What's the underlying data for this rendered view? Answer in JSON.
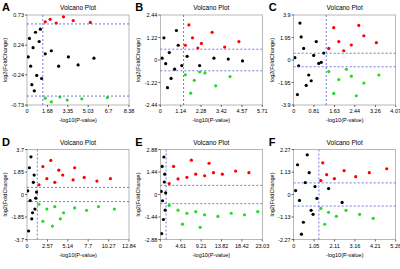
{
  "chart_data": [
    {
      "type": "scatter",
      "panel_label": "A",
      "title": "Volcano Plot",
      "x_label": "-log10(P-value)",
      "y_label": "log2(FoldChange)",
      "xlim": [
        0,
        8.38
      ],
      "xticks": [
        0,
        1.68,
        3.35,
        5.03,
        6.7,
        8.38
      ],
      "ylim": [
        -0.73,
        0.73
      ],
      "yticks": [
        -0.73,
        -0.24,
        0.24,
        0.73
      ],
      "thresholds": {
        "x": 1.3,
        "y": [
          -0.585,
          0.585
        ]
      },
      "series": [
        {
          "color": "#000000",
          "marker": "circle",
          "x": [
            0.1,
            0.3,
            0.5,
            0.8,
            1.0,
            1.2,
            1.5,
            0.2,
            0.4,
            0.7,
            2.0,
            2.6,
            3.4,
            4.2,
            5.5,
            0.6,
            1.1
          ],
          "values": [
            0.05,
            -0.1,
            0.2,
            -0.25,
            0.3,
            -0.3,
            0.1,
            0.35,
            -0.4,
            0.45,
            0.15,
            -0.1,
            0.05,
            -0.08,
            0.03,
            -0.5,
            0.5
          ]
        },
        {
          "color": "#ff0000",
          "marker": "circle",
          "x": [
            1.5,
            1.9,
            2.4,
            3.0,
            3.8,
            5.2
          ],
          "values": [
            0.62,
            0.66,
            0.6,
            0.7,
            0.64,
            0.61
          ]
        },
        {
          "color": "#22dd22",
          "marker": "circle",
          "x": [
            1.5,
            2.0,
            2.7,
            3.3,
            4.5,
            6.6
          ],
          "values": [
            -0.62,
            -0.68,
            -0.6,
            -0.65,
            -0.63,
            -0.61
          ]
        }
      ]
    },
    {
      "type": "scatter",
      "panel_label": "B",
      "title": "Volcano Plot",
      "x_label": "-log10(P-value)",
      "y_label": "log2(FoldChange)",
      "xlim": [
        0,
        5.71
      ],
      "xticks": [
        0,
        1.14,
        2.28,
        3.42,
        4.57,
        5.71
      ],
      "ylim": [
        -2.44,
        2.44
      ],
      "yticks": [
        -2.44,
        -1.22,
        0,
        1.22,
        2.44
      ],
      "thresholds": {
        "x": 1.3,
        "y": [
          -0.585,
          0.585
        ]
      },
      "series": [
        {
          "color": "#000000",
          "marker": "circle",
          "x": [
            0.1,
            0.3,
            0.5,
            0.8,
            1.0,
            1.2,
            0.2,
            0.6,
            1.5,
            2.2,
            3.0,
            3.8,
            4.6,
            0.4,
            0.9
          ],
          "values": [
            0.1,
            -0.2,
            0.4,
            -0.5,
            0.8,
            -0.3,
            1.2,
            -1.0,
            0.2,
            -0.3,
            0.1,
            0.05,
            -0.05,
            -1.5,
            1.6
          ]
        },
        {
          "color": "#ff0000",
          "marker": "circle",
          "x": [
            1.4,
            1.8,
            2.3,
            2.9,
            3.6,
            4.4,
            1.6,
            2.1
          ],
          "values": [
            0.8,
            1.2,
            0.9,
            1.5,
            0.7,
            1.0,
            1.9,
            0.65
          ]
        },
        {
          "color": "#22dd22",
          "marker": "circle",
          "x": [
            1.4,
            1.9,
            2.5,
            3.1,
            3.9,
            1.7,
            2.2
          ],
          "values": [
            -0.8,
            -1.1,
            -0.7,
            -1.4,
            -0.9,
            -1.8,
            -0.65
          ]
        }
      ]
    },
    {
      "type": "scatter",
      "panel_label": "C",
      "title": "Volcano Plot",
      "x_label": "-log10(P-value)",
      "y_label": "log2(FoldChange)",
      "xlim": [
        0,
        4.07
      ],
      "xticks": [
        0,
        0.81,
        1.63,
        2.44,
        3.26,
        4.07
      ],
      "ylim": [
        -3.9,
        3.9
      ],
      "yticks": [
        -3.9,
        -1.95,
        0,
        1.95,
        3.9
      ],
      "thresholds": {
        "x": 1.3,
        "y": [
          -0.585,
          0.585
        ]
      },
      "series": [
        {
          "color": "#000000",
          "marker": "circle",
          "x": [
            0.05,
            0.2,
            0.4,
            0.6,
            0.8,
            1.0,
            1.2,
            0.3,
            0.5,
            0.9,
            0.15,
            0.7,
            1.1,
            0.25
          ],
          "values": [
            0.2,
            -0.5,
            1.0,
            -1.3,
            0.4,
            -0.3,
            0.6,
            2.0,
            -2.2,
            1.6,
            -3.0,
            -1.8,
            -0.2,
            3.2
          ]
        },
        {
          "color": "#ff0000",
          "marker": "circle",
          "x": [
            1.4,
            1.8,
            2.3,
            2.8,
            3.3,
            1.6,
            2.0,
            2.6
          ],
          "values": [
            1.0,
            1.6,
            1.3,
            2.1,
            1.5,
            2.8,
            0.8,
            3.0
          ]
        },
        {
          "color": "#22dd22",
          "marker": "circle",
          "x": [
            1.4,
            1.8,
            2.3,
            2.8,
            3.4,
            1.6,
            2.1,
            2.5
          ],
          "values": [
            -1.0,
            -1.7,
            -1.4,
            -2.0,
            -1.3,
            -2.9,
            -0.8,
            -3.1
          ]
        }
      ]
    },
    {
      "type": "scatter",
      "panel_label": "D",
      "title": "Volcano Plot",
      "x_label": "-log10(P-value)",
      "y_label": "log2(FoldChange)",
      "xlim": [
        0,
        12.84
      ],
      "xticks": [
        0,
        2.57,
        5.14,
        7.7,
        10.27,
        12.84
      ],
      "ylim": [
        -3.7,
        3.7
      ],
      "yticks": [
        -3.7,
        -1.85,
        0,
        1.85,
        3.7
      ],
      "thresholds": {
        "x": 1.3,
        "y": [
          -0.585,
          0.585
        ]
      },
      "series": [
        {
          "color": "#000000",
          "marker": "circle",
          "x": [
            0.1,
            0.4,
            0.8,
            1.0,
            1.2,
            0.3,
            0.6,
            0.9,
            0.2,
            0.5,
            1.1,
            0.7
          ],
          "values": [
            0.3,
            -0.5,
            1.0,
            -1.2,
            0.2,
            2.2,
            -2.0,
            1.6,
            -3.0,
            3.1,
            -0.3,
            -1.5
          ]
        },
        {
          "color": "#ff0000",
          "marker": "circle",
          "x": [
            1.5,
            2.5,
            3.5,
            4.5,
            5.8,
            7.2,
            8.8,
            10.5,
            2.0,
            3.0,
            4.0,
            6.0
          ],
          "values": [
            0.8,
            1.3,
            1.0,
            1.6,
            1.2,
            1.4,
            1.1,
            1.3,
            2.3,
            2.8,
            2.0,
            2.2
          ]
        },
        {
          "color": "#22dd22",
          "marker": "circle",
          "x": [
            1.5,
            2.5,
            3.5,
            4.6,
            6.0,
            7.5,
            9.0,
            11.0,
            2.0,
            3.2,
            4.2
          ],
          "values": [
            -0.8,
            -1.2,
            -1.0,
            -1.5,
            -1.1,
            -1.3,
            -1.0,
            -1.2,
            -2.2,
            -2.6,
            -2.0
          ]
        }
      ]
    },
    {
      "type": "scatter",
      "panel_label": "E",
      "title": "Volcano Plot",
      "x_label": "-log10(P-value)",
      "y_label": "log2(FoldChange)",
      "xlim": [
        0,
        23.03
      ],
      "xticks": [
        0,
        4.61,
        9.21,
        13.82,
        18.42,
        23.03
      ],
      "ylim": [
        -2.88,
        2.88
      ],
      "yticks": [
        -2.88,
        -1.44,
        0,
        1.44,
        2.88
      ],
      "thresholds": {
        "x": 1.3,
        "y": [
          -0.585,
          0.585
        ]
      },
      "series": [
        {
          "color": "#000000",
          "marker": "circle",
          "x": [
            0.2,
            0.5,
            0.9,
            1.1,
            1.2,
            0.4,
            0.7,
            1.0,
            0.3,
            0.8
          ],
          "values": [
            0.2,
            -0.4,
            0.8,
            -1.0,
            0.1,
            1.8,
            -1.6,
            1.3,
            -2.5,
            2.4
          ]
        },
        {
          "color": "#ff0000",
          "marker": "circle",
          "x": [
            2,
            4,
            6,
            8,
            10,
            12,
            14,
            17,
            20,
            3,
            7,
            11
          ],
          "values": [
            0.7,
            1.0,
            1.1,
            1.3,
            1.2,
            1.4,
            1.3,
            1.5,
            1.4,
            1.8,
            2.2,
            2.0
          ]
        },
        {
          "color": "#22dd22",
          "marker": "circle",
          "x": [
            2,
            4,
            6,
            8,
            10,
            13,
            16,
            19,
            22,
            5,
            9
          ],
          "values": [
            -0.7,
            -1.0,
            -1.2,
            -1.1,
            -1.3,
            -1.4,
            -1.2,
            -1.3,
            -1.1,
            -1.9,
            -2.1
          ]
        }
      ]
    },
    {
      "type": "scatter",
      "panel_label": "F",
      "title": "Volcano Plot",
      "x_label": "-log10(P-value)",
      "y_label": "log2(FoldChange)",
      "xlim": [
        0,
        5.26
      ],
      "xticks": [
        0,
        1.05,
        2.11,
        3.16,
        4.21,
        5.26
      ],
      "ylim": [
        -2.27,
        2.27
      ],
      "yticks": [
        -2.27,
        -1.13,
        0,
        1.13,
        2.27
      ],
      "thresholds": {
        "x": 1.3,
        "y": [
          -0.585,
          0.585
        ]
      },
      "series": [
        {
          "color": "#000000",
          "marker": "circle",
          "x": [
            0.1,
            0.3,
            0.6,
            0.9,
            1.1,
            1.2,
            0.2,
            0.5,
            0.8,
            1.0,
            0.4,
            0.7,
            1.8,
            2.5
          ],
          "values": [
            0.2,
            -0.3,
            0.6,
            -0.8,
            0.4,
            -0.2,
            1.5,
            -1.4,
            1.1,
            -1.0,
            -2.0,
            2.0,
            0.3,
            -0.4
          ]
        },
        {
          "color": "#ff0000",
          "marker": "circle",
          "x": [
            1.4,
            1.7,
            2.1,
            2.6,
            3.2,
            3.9,
            4.8,
            1.5
          ],
          "values": [
            0.7,
            1.0,
            0.8,
            1.2,
            0.9,
            1.1,
            1.3,
            1.6
          ]
        },
        {
          "color": "#22dd22",
          "marker": "circle",
          "x": [
            1.4,
            1.8,
            2.2,
            2.7,
            3.4,
            4.1,
            1.6
          ],
          "values": [
            -0.7,
            -0.9,
            -1.1,
            -0.8,
            -1.0,
            -1.2,
            -1.5
          ]
        }
      ]
    }
  ]
}
